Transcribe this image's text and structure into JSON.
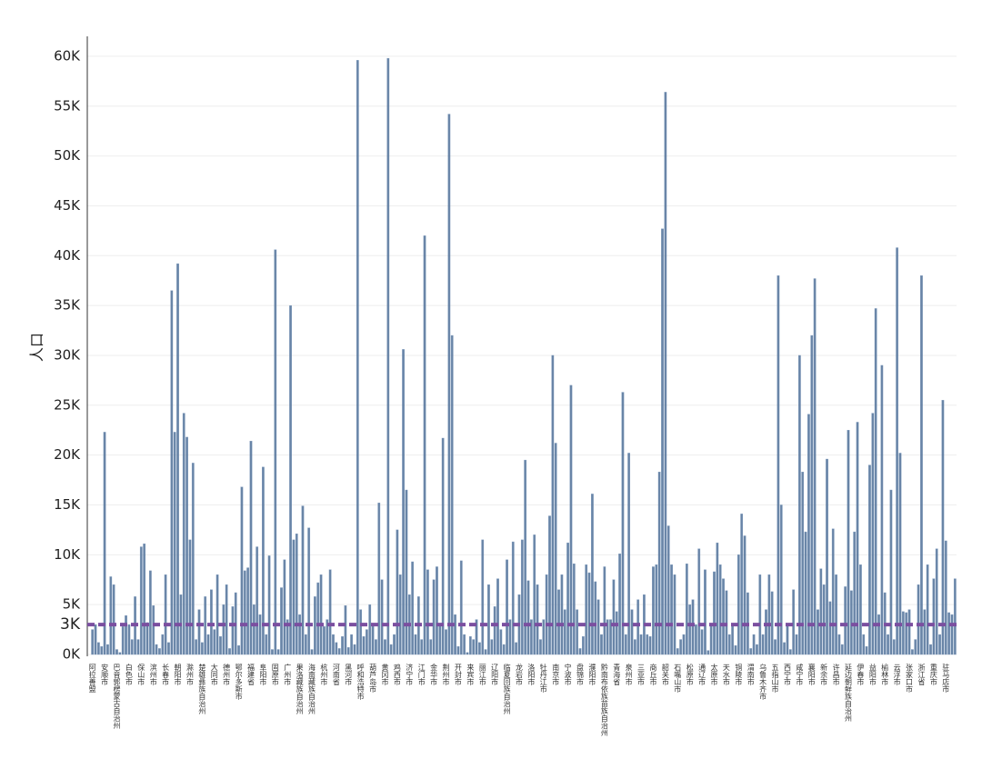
{
  "chart_data": {
    "type": "bar",
    "y_label": "人口",
    "color": "#4e6e96",
    "ylim": [
      0,
      62000
    ],
    "yticks": [
      {
        "value": 0,
        "label": "0K"
      },
      {
        "value": 5000,
        "label": "5K"
      },
      {
        "value": 10000,
        "label": "10K"
      },
      {
        "value": 15000,
        "label": "15K"
      },
      {
        "value": 20000,
        "label": "20K"
      },
      {
        "value": 25000,
        "label": "25K"
      },
      {
        "value": 30000,
        "label": "30K"
      },
      {
        "value": 35000,
        "label": "35K"
      },
      {
        "value": 40000,
        "label": "40K"
      },
      {
        "value": 45000,
        "label": "45K"
      },
      {
        "value": 50000,
        "label": "50K"
      },
      {
        "value": 55000,
        "label": "55K"
      },
      {
        "value": 60000,
        "label": "60K"
      }
    ],
    "grid": true,
    "reference_line": {
      "value": 3000,
      "label": "3K",
      "color": "#7b4fa0"
    },
    "categories": [
      "阿拉善盟",
      null,
      null,
      null,
      "安顺市",
      null,
      null,
      null,
      "巴音郭楞蒙古自治州",
      null,
      null,
      null,
      "白色市",
      null,
      null,
      null,
      "保山市",
      null,
      null,
      null,
      "滨州市",
      null,
      null,
      null,
      "长春市",
      null,
      null,
      null,
      "朝阳市",
      null,
      null,
      null,
      "滁州市",
      null,
      null,
      null,
      "楚雄彝族自治州",
      null,
      null,
      null,
      "大同市",
      null,
      null,
      null,
      "德州市",
      null,
      null,
      null,
      "鄂尔多斯市",
      null,
      null,
      null,
      "福建省",
      null,
      null,
      null,
      "阜阳市",
      null,
      null,
      null,
      "固原市",
      null,
      null,
      null,
      "广州市",
      null,
      null,
      null,
      "果洛藏族自治州",
      null,
      null,
      null,
      "海南藏族自治州",
      null,
      null,
      null,
      "杭州市",
      null,
      null,
      null,
      "河南省",
      null,
      null,
      null,
      "黑河市",
      null,
      null,
      null,
      "呼和浩特市",
      null,
      null,
      null,
      "葫芦岛市",
      null,
      null,
      null,
      "黄冈市",
      null,
      null,
      null,
      "鸡西市",
      null,
      null,
      null,
      "济宁市",
      null,
      null,
      null,
      "江门市",
      null,
      null,
      null,
      "金华市",
      null,
      null,
      null,
      "荆州市",
      null,
      null,
      null,
      "开封市",
      null,
      null,
      null,
      "来宾市",
      null,
      null,
      null,
      "丽江市",
      null,
      null,
      null,
      "辽阳市",
      null,
      null,
      null,
      "临夏回族自治州",
      null,
      null,
      null,
      "龙岩市",
      null,
      null,
      null,
      "洛阳市",
      null,
      null,
      null,
      "牡丹江市",
      null,
      null,
      null,
      "南京市",
      null,
      null,
      null,
      "宁波市",
      null,
      null,
      null,
      "盘锦市",
      null,
      null,
      null,
      "濮阳市",
      null,
      null,
      null,
      "黔南布依族苗族自治州",
      null,
      null,
      null,
      "青海省",
      null,
      null,
      null,
      "泉州市",
      null,
      null,
      null,
      "三亚市",
      null,
      null,
      null,
      "商丘市",
      null,
      null,
      null,
      "韶关市",
      null,
      null,
      null,
      "石嘴山市",
      null,
      null,
      null,
      "松原市",
      null,
      null,
      null,
      "通辽市",
      null,
      null,
      null,
      "太原市",
      null,
      null,
      null,
      "天水市",
      null,
      null,
      null,
      "铜陵市",
      null,
      null,
      null,
      "渭南市",
      null,
      null,
      null,
      "乌鲁木齐市",
      null,
      null,
      null,
      "五指山市",
      null,
      null,
      null,
      "西宁市",
      null,
      null,
      null,
      "咸宁市",
      null,
      null,
      null,
      "襄阳市",
      null,
      null,
      null,
      "新余市",
      null,
      null,
      null,
      "许昌市",
      null,
      null,
      null,
      "延边朝鲜族自治州",
      null,
      null,
      null,
      "伊春市",
      null,
      null,
      null,
      "益阳市",
      null,
      null,
      null,
      "榆林市",
      null,
      null,
      null,
      "云浮市",
      null,
      null,
      null,
      "张家口市",
      null,
      null,
      null,
      "浙江省",
      null,
      null,
      null,
      "重庆市",
      null,
      null,
      null,
      "驻马店市",
      null,
      null,
      null
    ],
    "values": [
      2500,
      3000,
      1200,
      800,
      22300,
      1000,
      7800,
      7000,
      500,
      200,
      2800,
      3900,
      3000,
      1500,
      5800,
      1500,
      10800,
      11100,
      3200,
      8400,
      4900,
      1000,
      600,
      2000,
      8000,
      1200,
      36500,
      22300,
      39200,
      6000,
      24200,
      21800,
      11500,
      19200,
      1500,
      4500,
      1200,
      5800,
      2000,
      6500,
      2500,
      8000,
      1800,
      5000,
      7000,
      600,
      4800,
      6200,
      900,
      16800,
      8400,
      8700,
      21400,
      5000,
      10800,
      4000,
      18800,
      2000,
      9900,
      500,
      40600,
      500,
      6700,
      9500,
      3500,
      35000,
      11500,
      12100,
      4000,
      14900,
      2000,
      12700,
      500,
      5800,
      7200,
      8000,
      2800,
      3500,
      8500,
      2000,
      1200,
      600,
      1800,
      4900,
      700,
      2000,
      1000,
      59600,
      4500,
      1800,
      2500,
      5000,
      3000,
      1500,
      15200,
      7500,
      1500,
      59800,
      1000,
      2000,
      12500,
      8000,
      30600,
      16500,
      6000,
      9300,
      2000,
      5800,
      1500,
      42000,
      8500,
      1500,
      7500,
      8800,
      3000,
      21700,
      2500,
      54200,
      32000,
      4000,
      800,
      9400,
      2000,
      200,
      1800,
      1500,
      3500,
      1200,
      11500,
      500,
      7000,
      1500,
      4800,
      7600,
      2500,
      1000,
      9500,
      3500,
      11300,
      1200,
      6000,
      11500,
      19500,
      7400,
      3500,
      12000,
      7000,
      1500,
      3500,
      8000,
      13900,
      30000,
      21200,
      6500,
      8000,
      4500,
      11200,
      27000,
      9100,
      4500,
      600,
      1800,
      9000,
      8200,
      16100,
      7300,
      5500,
      2000,
      8800,
      3500,
      3500,
      7500,
      4300,
      10100,
      26300,
      2000,
      20200,
      4500,
      1500,
      5500,
      2000,
      6000,
      2000,
      1800,
      8800,
      9000,
      18300,
      42700,
      56400,
      12900,
      9000,
      8000,
      600,
      1500,
      2000,
      9100,
      5000,
      5500,
      3000,
      10600,
      2500,
      8500,
      400,
      3000,
      8300,
      11200,
      9000,
      7600,
      6400,
      2000,
      3000,
      900,
      10000,
      14100,
      11900,
      6200,
      600,
      2000,
      1000,
      8000,
      2000,
      4500,
      8000,
      6300,
      1500,
      38000,
      15000,
      1200,
      3000,
      500,
      6500,
      2000,
      30000,
      18300,
      12300,
      24100,
      32000,
      37700,
      4500,
      8600,
      7000,
      19600,
      5300,
      12600,
      8000,
      2000,
      1000,
      6800,
      22500,
      6400,
      12300,
      23300,
      9000,
      2000,
      800,
      19000,
      24200,
      34700,
      4000,
      29000,
      6200,
      2000,
      16500,
      1500,
      40800,
      20200,
      4300,
      4200,
      4500,
      500,
      1500,
      7000,
      38000,
      4500,
      9000,
      1000,
      7600,
      10600,
      2000,
      25500,
      11400,
      4200,
      4000,
      7600
    ]
  }
}
